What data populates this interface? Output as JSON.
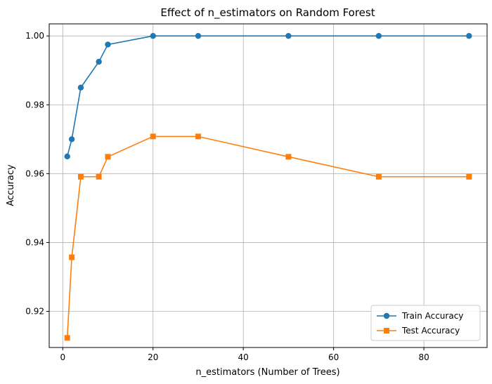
{
  "chart_data": {
    "type": "line",
    "title": "Effect of n_estimators on Random Forest",
    "xlabel": "n_estimators (Number of Trees)",
    "ylabel": "Accuracy",
    "xlim": [
      -3,
      94
    ],
    "ylim": [
      0.9095,
      1.0035
    ],
    "xticks": [
      0,
      20,
      40,
      60,
      80
    ],
    "xtick_labels": [
      "0",
      "20",
      "40",
      "60",
      "80"
    ],
    "yticks": [
      0.92,
      0.94,
      0.96,
      0.98,
      1.0
    ],
    "ytick_labels": [
      "0.92",
      "0.94",
      "0.96",
      "0.98",
      "1.00"
    ],
    "grid": true,
    "legend_position": "lower-right",
    "x": [
      1,
      2,
      4,
      8,
      10,
      20,
      30,
      50,
      70,
      90
    ],
    "series": [
      {
        "name": "Train Accuracy",
        "color": "#1f77b4",
        "marker": "circle",
        "values": [
          0.965,
          0.97,
          0.985,
          0.9925,
          0.9975,
          1.0,
          1.0,
          1.0,
          1.0,
          1.0
        ]
      },
      {
        "name": "Test Accuracy",
        "color": "#ff7f0e",
        "marker": "square",
        "values": [
          0.9123,
          0.9357,
          0.9591,
          0.9591,
          0.9649,
          0.9708,
          0.9708,
          0.9649,
          0.9591,
          0.9591
        ]
      }
    ]
  }
}
